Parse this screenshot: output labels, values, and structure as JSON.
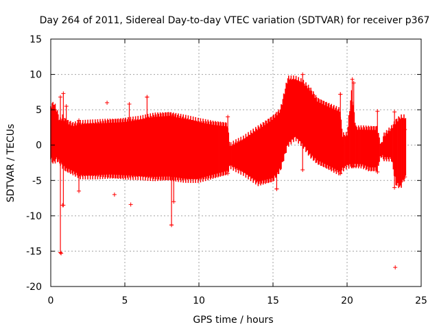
{
  "chart_data": {
    "type": "scatter",
    "title": "Day 264 of 2011, Sidereal Day-to-day VTEC variation (SDTVAR) for receiver p367",
    "xlabel": "GPS time / hours",
    "ylabel": "SDTVAR / TECUs",
    "xlim": [
      0,
      25
    ],
    "ylim": [
      -20,
      15
    ],
    "xticks": [
      0,
      5,
      10,
      15,
      20,
      25
    ],
    "yticks": [
      -20,
      -15,
      -10,
      -5,
      0,
      5,
      10,
      15
    ],
    "grid": true,
    "marker": "+",
    "color": "#ff0000",
    "series": [
      {
        "name": "SDTVAR",
        "envelope": [
          {
            "x": 0.0,
            "min": -2.0,
            "max": 5.5
          },
          {
            "x": 0.2,
            "min": -2.5,
            "max": 6.0
          },
          {
            "x": 0.4,
            "min": -2.0,
            "max": 5.0
          },
          {
            "x": 0.6,
            "min": -2.5,
            "max": 3.5
          },
          {
            "x": 0.8,
            "min": -3.0,
            "max": 4.0
          },
          {
            "x": 1.0,
            "min": -3.5,
            "max": 3.5
          },
          {
            "x": 1.5,
            "min": -4.0,
            "max": 3.0
          },
          {
            "x": 2.0,
            "min": -4.5,
            "max": 3.2
          },
          {
            "x": 3.0,
            "min": -4.5,
            "max": 3.3
          },
          {
            "x": 4.0,
            "min": -4.5,
            "max": 3.5
          },
          {
            "x": 5.0,
            "min": -4.6,
            "max": 3.6
          },
          {
            "x": 6.0,
            "min": -4.6,
            "max": 3.8
          },
          {
            "x": 7.0,
            "min": -4.8,
            "max": 4.3
          },
          {
            "x": 8.0,
            "min": -4.8,
            "max": 4.5
          },
          {
            "x": 9.0,
            "min": -5.0,
            "max": 4.0
          },
          {
            "x": 10.0,
            "min": -5.0,
            "max": 3.5
          },
          {
            "x": 11.0,
            "min": -4.5,
            "max": 3.2
          },
          {
            "x": 11.9,
            "min": -4.0,
            "max": 3.0
          },
          {
            "x": 12.1,
            "min": -3.0,
            "max": 0.0
          },
          {
            "x": 12.5,
            "min": -3.5,
            "max": 0.5
          },
          {
            "x": 13.0,
            "min": -4.0,
            "max": 1.0
          },
          {
            "x": 14.0,
            "min": -5.5,
            "max": 2.5
          },
          {
            "x": 15.0,
            "min": -5.0,
            "max": 4.0
          },
          {
            "x": 15.5,
            "min": -3.5,
            "max": 5.0
          },
          {
            "x": 16.0,
            "min": 0.0,
            "max": 9.5
          },
          {
            "x": 16.5,
            "min": 1.0,
            "max": 9.5
          },
          {
            "x": 17.0,
            "min": 0.0,
            "max": 9.0
          },
          {
            "x": 17.5,
            "min": -1.5,
            "max": 8.0
          },
          {
            "x": 18.0,
            "min": -2.5,
            "max": 6.5
          },
          {
            "x": 18.5,
            "min": -3.0,
            "max": 6.0
          },
          {
            "x": 19.0,
            "min": -3.5,
            "max": 5.5
          },
          {
            "x": 19.5,
            "min": -4.0,
            "max": 5.0
          },
          {
            "x": 19.7,
            "min": -3.5,
            "max": 1.5
          },
          {
            "x": 20.0,
            "min": -3.0,
            "max": 1.5
          },
          {
            "x": 20.3,
            "min": -3.0,
            "max": 7.5
          },
          {
            "x": 20.6,
            "min": -3.0,
            "max": 2.5
          },
          {
            "x": 21.0,
            "min": -3.0,
            "max": 2.5
          },
          {
            "x": 21.5,
            "min": -3.5,
            "max": 2.5
          },
          {
            "x": 22.0,
            "min": -3.5,
            "max": 2.5
          },
          {
            "x": 22.3,
            "min": -1.5,
            "max": 0.0
          },
          {
            "x": 22.5,
            "min": -2.0,
            "max": 1.5
          },
          {
            "x": 23.0,
            "min": -2.0,
            "max": 2.5
          },
          {
            "x": 23.3,
            "min": -5.5,
            "max": 3.5
          },
          {
            "x": 23.6,
            "min": -6.0,
            "max": 4.0
          },
          {
            "x": 23.9,
            "min": -4.5,
            "max": 4.0
          },
          {
            "x": 24.0,
            "min": -4.5,
            "max": 4.0
          }
        ],
        "spikes": [
          {
            "x": 0.65,
            "min": -15.2,
            "max": 6.8
          },
          {
            "x": 0.85,
            "min": -8.5,
            "max": 7.3
          },
          {
            "x": 1.05,
            "min": -3.0,
            "max": 5.5
          },
          {
            "x": 1.9,
            "min": -6.5,
            "max": 3.5
          },
          {
            "x": 5.3,
            "min": -4.0,
            "max": 5.8
          },
          {
            "x": 6.5,
            "min": -4.0,
            "max": 6.8
          },
          {
            "x": 8.15,
            "min": -11.3,
            "max": 4.0
          },
          {
            "x": 8.3,
            "min": -8.0,
            "max": 4.0
          },
          {
            "x": 11.95,
            "min": -4.0,
            "max": 4.0
          },
          {
            "x": 15.25,
            "min": -6.2,
            "max": 3.5
          },
          {
            "x": 17.0,
            "min": -3.5,
            "max": 10.0
          },
          {
            "x": 19.55,
            "min": -4.0,
            "max": 7.2
          },
          {
            "x": 20.35,
            "min": -3.0,
            "max": 9.3
          },
          {
            "x": 20.45,
            "min": -3.0,
            "max": 8.8
          },
          {
            "x": 22.05,
            "min": -3.8,
            "max": 4.8
          },
          {
            "x": 23.2,
            "min": -6.0,
            "max": 4.7
          },
          {
            "x": 23.9,
            "min": -4.5,
            "max": 2.2
          }
        ],
        "outliers": [
          {
            "x": 0.7,
            "y": -15.3
          },
          {
            "x": 0.8,
            "y": -8.5
          },
          {
            "x": 3.8,
            "y": 6.0
          },
          {
            "x": 4.3,
            "y": -7.0
          },
          {
            "x": 5.4,
            "y": -8.4
          },
          {
            "x": 6.5,
            "y": 6.8
          },
          {
            "x": 8.15,
            "y": -11.3
          },
          {
            "x": 15.25,
            "y": -6.2
          },
          {
            "x": 19.55,
            "y": 7.2
          },
          {
            "x": 23.25,
            "y": -17.3
          }
        ]
      }
    ]
  }
}
